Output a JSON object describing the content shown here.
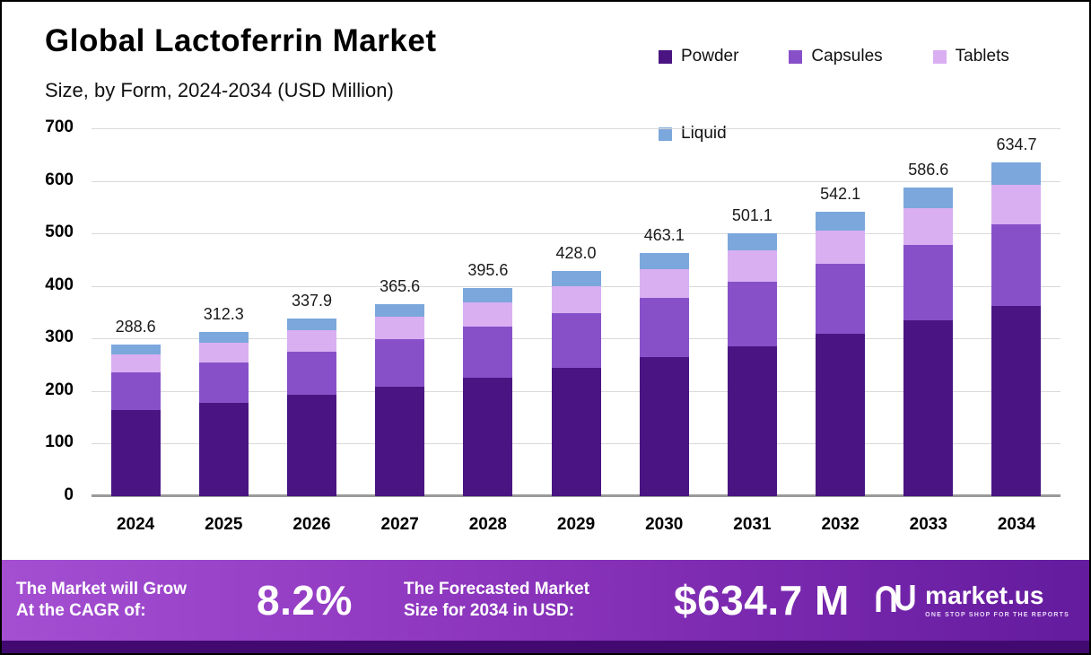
{
  "title": "Global Lactoferrin Market",
  "subtitle": "Size, by Form, 2024-2034 (USD Million)",
  "legend": [
    {
      "label": "Powder",
      "color": "#4a1582"
    },
    {
      "label": "Capsules",
      "color": "#8850c8"
    },
    {
      "label": "Tablets",
      "color": "#d9aff2"
    },
    {
      "label": "Liquid",
      "color": "#7ba7dc"
    }
  ],
  "chart_data": {
    "type": "bar",
    "stacked": true,
    "title": "Global Lactoferrin Market Size, by Form, 2024-2034 (USD Million)",
    "categories": [
      "2024",
      "2025",
      "2026",
      "2027",
      "2028",
      "2029",
      "2030",
      "2031",
      "2032",
      "2033",
      "2034"
    ],
    "totals": [
      288.6,
      312.3,
      337.9,
      365.6,
      395.6,
      428.0,
      463.1,
      501.1,
      542.1,
      586.6,
      634.7
    ],
    "series": [
      {
        "name": "Powder",
        "color": "#4a1582",
        "values": [
          164.5,
          178.0,
          192.6,
          208.4,
          225.5,
          244.0,
          264.0,
          285.6,
          309.0,
          334.4,
          361.8
        ]
      },
      {
        "name": "Capsules",
        "color": "#8850c8",
        "values": [
          70.7,
          76.5,
          82.8,
          89.6,
          96.9,
          104.9,
          113.5,
          122.8,
          132.8,
          143.7,
          155.5
        ]
      },
      {
        "name": "Tablets",
        "color": "#d9aff2",
        "values": [
          34.1,
          36.9,
          39.9,
          43.1,
          46.7,
          50.5,
          54.6,
          59.1,
          64.0,
          69.2,
          74.9
        ]
      },
      {
        "name": "Liquid",
        "color": "#7ba7dc",
        "values": [
          19.3,
          20.9,
          22.6,
          24.5,
          26.5,
          28.6,
          31.0,
          33.6,
          36.3,
          39.3,
          42.5
        ]
      }
    ],
    "xlabel": "",
    "ylabel": "",
    "ylim": [
      0,
      700
    ],
    "yticks": [
      0,
      100,
      200,
      300,
      400,
      500,
      600,
      700
    ],
    "grid": true,
    "legend_position": "top-right"
  },
  "banner": {
    "cagr_label_line1": "The Market will Grow",
    "cagr_label_line2": "At the CAGR of:",
    "cagr_value": "8.2%",
    "forecast_label_line1": "The Forecasted Market",
    "forecast_label_line2": "Size for 2034 in USD:",
    "forecast_value": "$634.7 M",
    "brand": "market.us",
    "brand_tagline": "ONE STOP SHOP FOR THE REPORTS"
  }
}
